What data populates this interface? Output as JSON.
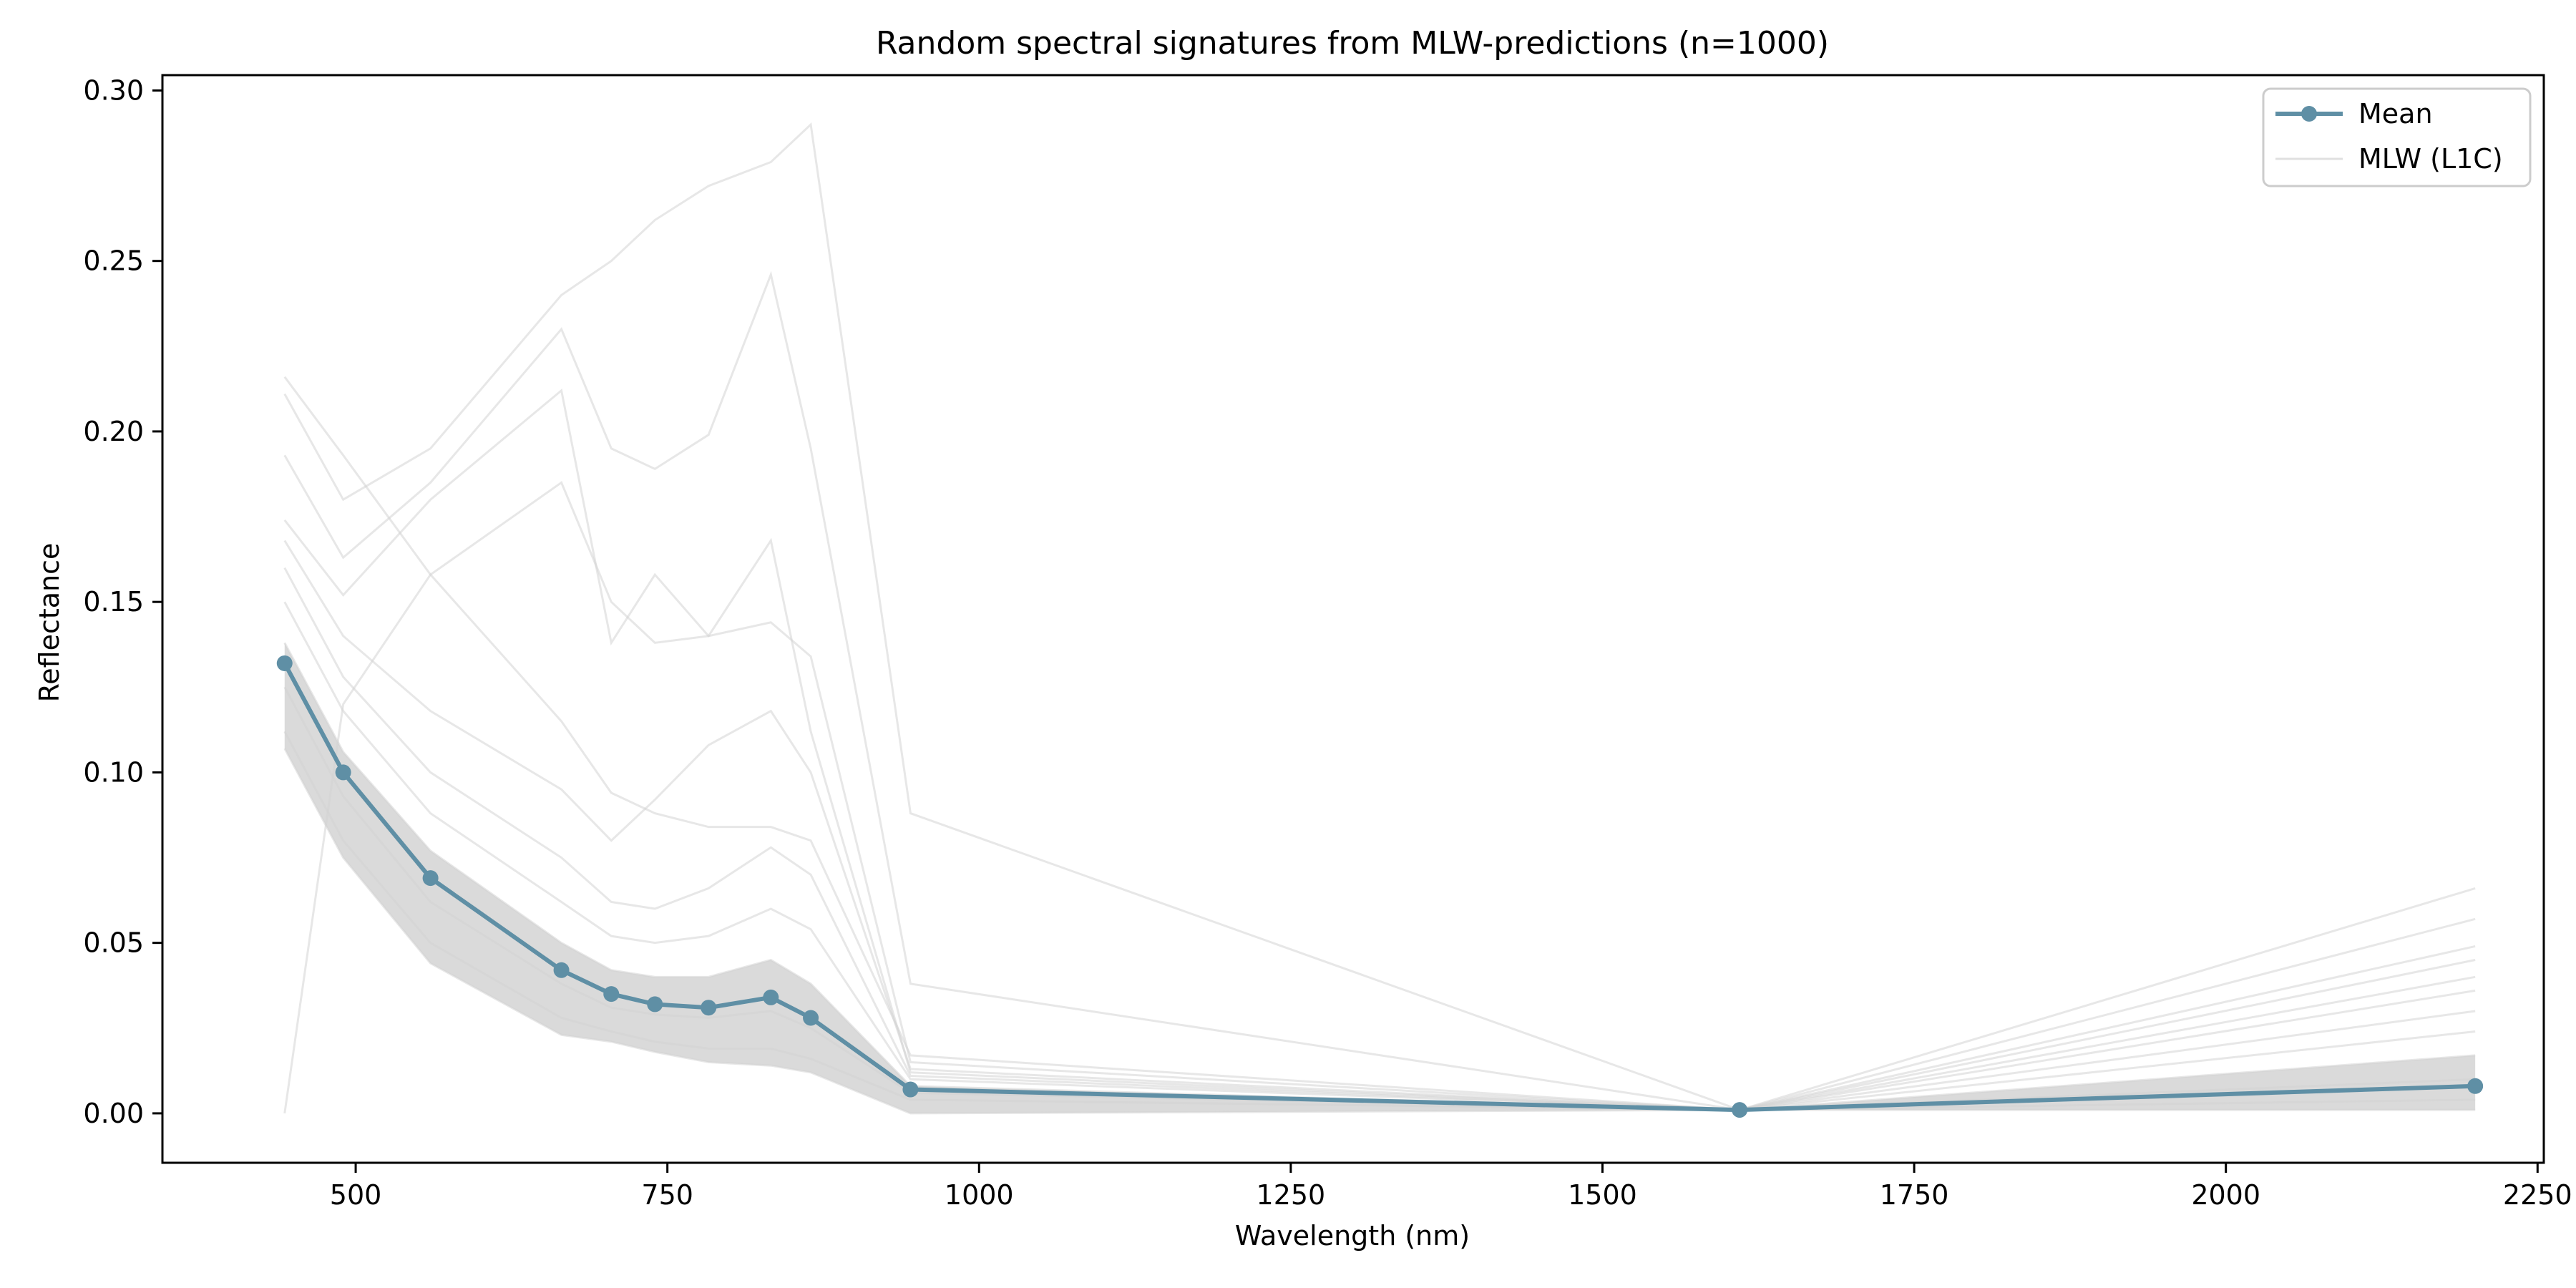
{
  "chart_data": {
    "type": "line",
    "title": "Random spectral signatures from MLW-predictions (n=1000)",
    "xlabel": "Wavelength (nm)",
    "ylabel": "Reflectance",
    "xlim": [
      345,
      2255
    ],
    "ylim": [
      -0.0145,
      0.3045
    ],
    "xticks": [
      500,
      750,
      1000,
      1250,
      1500,
      1750,
      2000,
      2250
    ],
    "xtick_labels": [
      "500",
      "750",
      "1000",
      "1250",
      "1500",
      "1750",
      "2000",
      "2250"
    ],
    "yticks": [
      0.0,
      0.05,
      0.1,
      0.15,
      0.2,
      0.25,
      0.3
    ],
    "ytick_labels": [
      "0.00",
      "0.05",
      "0.10",
      "0.15",
      "0.20",
      "0.25",
      "0.30"
    ],
    "grid": false,
    "legend_position": "top-right",
    "wavelengths": [
      443,
      490,
      560,
      665,
      705,
      740,
      783,
      833,
      865,
      945,
      1610,
      2200
    ],
    "series": [
      {
        "name": "Mean",
        "color": "#5f8fa5",
        "marker": "circle",
        "values": [
          0.132,
          0.1,
          0.069,
          0.042,
          0.035,
          0.032,
          0.031,
          0.034,
          0.028,
          0.007,
          0.001,
          0.008
        ]
      },
      {
        "name": "MLW (L1C)",
        "color": "#d3d3d3",
        "n": 1000,
        "samples": [
          [
            0.216,
            0.193,
            0.158,
            0.115,
            0.094,
            0.088,
            0.084,
            0.084,
            0.08,
            0.017,
            0.001,
            0.066
          ],
          [
            0.211,
            0.18,
            0.195,
            0.24,
            0.25,
            0.262,
            0.272,
            0.279,
            0.29,
            0.088,
            0.001,
            0.057
          ],
          [
            0.193,
            0.163,
            0.185,
            0.23,
            0.195,
            0.189,
            0.199,
            0.246,
            0.195,
            0.038,
            0.001,
            0.049
          ],
          [
            0.174,
            0.152,
            0.18,
            0.212,
            0.138,
            0.158,
            0.14,
            0.144,
            0.134,
            0.015,
            0.001,
            0.045
          ],
          [
            0.0,
            0.12,
            0.158,
            0.185,
            0.15,
            0.138,
            0.14,
            0.168,
            0.112,
            0.012,
            0.001,
            0.04
          ],
          [
            0.168,
            0.14,
            0.118,
            0.095,
            0.08,
            0.092,
            0.108,
            0.118,
            0.1,
            0.013,
            0.001,
            0.036
          ],
          [
            0.16,
            0.128,
            0.1,
            0.075,
            0.062,
            0.06,
            0.066,
            0.078,
            0.07,
            0.011,
            0.001,
            0.03
          ],
          [
            0.15,
            0.118,
            0.088,
            0.062,
            0.052,
            0.05,
            0.052,
            0.06,
            0.054,
            0.01,
            0.001,
            0.024
          ],
          [
            0.138,
            0.106,
            0.077,
            0.05,
            0.042,
            0.04,
            0.04,
            0.045,
            0.038,
            0.008,
            0.001,
            0.017
          ],
          [
            0.125,
            0.093,
            0.062,
            0.038,
            0.031,
            0.029,
            0.028,
            0.03,
            0.025,
            0.006,
            0.001,
            0.01
          ],
          [
            0.112,
            0.08,
            0.05,
            0.028,
            0.024,
            0.021,
            0.019,
            0.019,
            0.016,
            0.004,
            0.001,
            0.004
          ],
          [
            0.107,
            0.075,
            0.044,
            0.023,
            0.021,
            0.018,
            0.015,
            0.014,
            0.012,
            0.0,
            0.001,
            0.001
          ]
        ]
      }
    ]
  }
}
